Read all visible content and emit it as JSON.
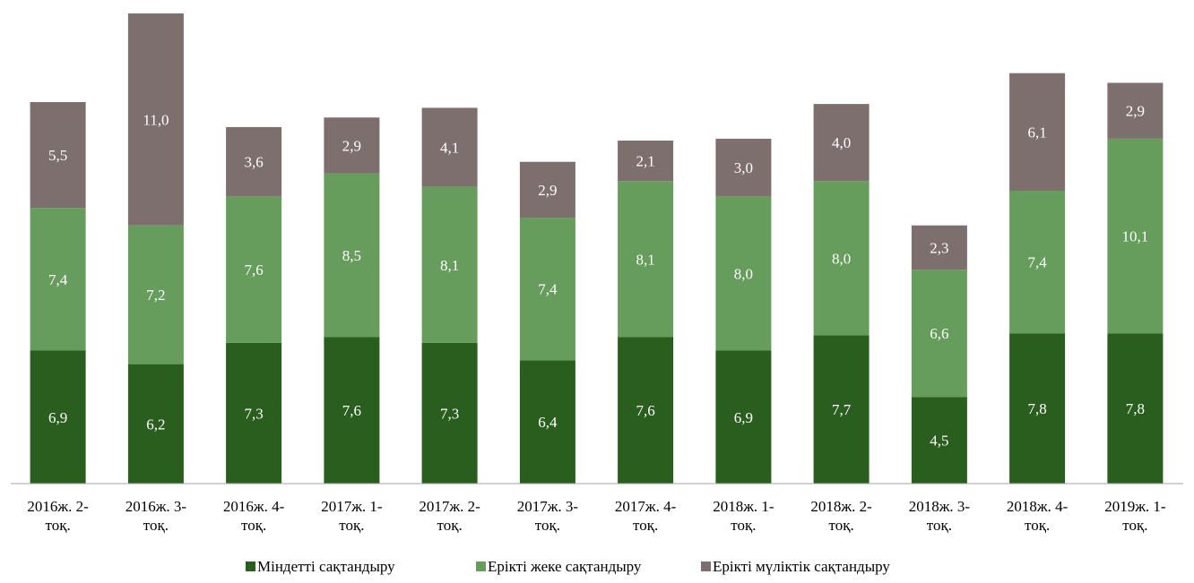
{
  "chart_data": {
    "type": "bar",
    "stacked": true,
    "categories": [
      [
        "2016ж. 2-",
        "тоқ."
      ],
      [
        "2016ж. 3-",
        "тоқ."
      ],
      [
        "2016ж. 4-",
        "тоқ."
      ],
      [
        "2017ж. 1-",
        "тоқ."
      ],
      [
        "2017ж. 2-",
        "тоқ."
      ],
      [
        "2017ж. 3-",
        "тоқ."
      ],
      [
        "2017ж. 4-",
        "тоқ."
      ],
      [
        "2018ж. 1-",
        "тоқ."
      ],
      [
        "2018ж. 2-",
        "тоқ."
      ],
      [
        "2018ж. 3-",
        "тоқ."
      ],
      [
        "2018ж. 4-",
        "тоқ."
      ],
      [
        "2019ж. 1-",
        "тоқ."
      ]
    ],
    "series": [
      {
        "name": "Міндетті сақтандыру",
        "color": "#2a5e1e",
        "values": [
          6.9,
          6.2,
          7.3,
          7.6,
          7.3,
          6.4,
          7.6,
          6.9,
          7.7,
          4.5,
          7.8,
          7.8
        ],
        "labels": [
          "6,9",
          "6,2",
          "7,3",
          "7,6",
          "7,3",
          "6,4",
          "7,6",
          "6,9",
          "7,7",
          "4,5",
          "7,8",
          "7,8"
        ]
      },
      {
        "name": "Ерікті жеке сақтандыру",
        "color": "#669c5c",
        "values": [
          7.4,
          7.2,
          7.6,
          8.5,
          8.1,
          7.4,
          8.1,
          8.0,
          8.0,
          6.6,
          7.4,
          10.1
        ],
        "labels": [
          "7,4",
          "7,2",
          "7,6",
          "8,5",
          "8,1",
          "7,4",
          "8,1",
          "8,0",
          "8,0",
          "6,6",
          "7,4",
          "10,1"
        ]
      },
      {
        "name": "Ерікті мүліктік сақтандыру",
        "color": "#7e6f6f",
        "values": [
          5.5,
          11.0,
          3.6,
          2.9,
          4.1,
          2.9,
          2.1,
          3.0,
          4.0,
          2.3,
          6.1,
          2.9
        ],
        "labels": [
          "5,5",
          "11,0",
          "3,6",
          "2,9",
          "4,1",
          "2,9",
          "2,1",
          "3,0",
          "4,0",
          "2,3",
          "6,1",
          "2,9"
        ]
      }
    ],
    "ylim": [
      0,
      24.4
    ],
    "grid": false,
    "legend_position": "bottom"
  }
}
